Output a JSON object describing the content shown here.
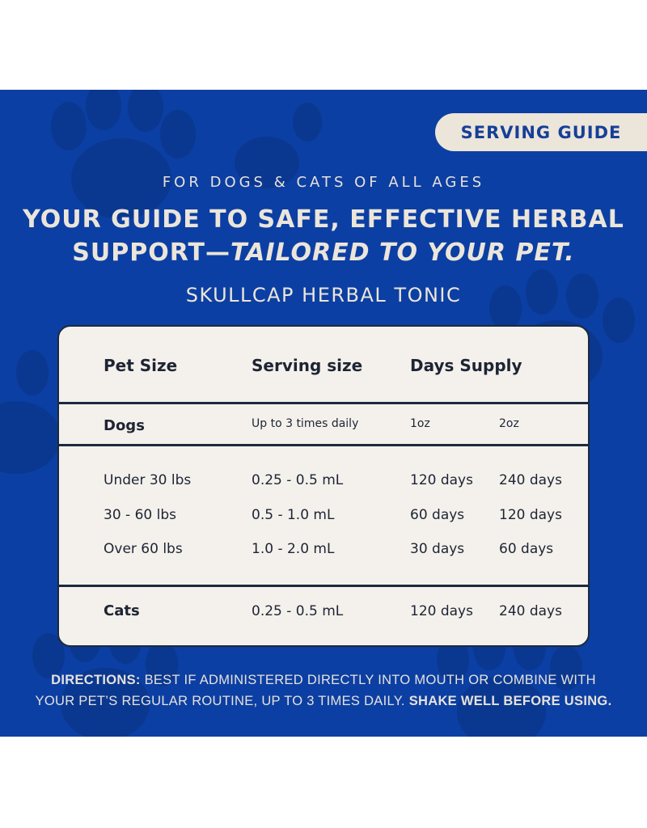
{
  "badge": "SERVING GUIDE",
  "kicker": "FOR DOGS & CATS OF ALL AGES",
  "headline": {
    "line1": "YOUR GUIDE TO SAFE, EFFECTIVE HERBAL",
    "line2_plain": "SUPPORT—",
    "line2_italic": "TAILORED TO YOUR PET."
  },
  "product_name": "SKULLCAP HERBAL TONIC",
  "table": {
    "headers": {
      "pet_size": "Pet Size",
      "serving_size": "Serving size",
      "days_supply": "Days Supply"
    },
    "dogs": {
      "label": "Dogs",
      "frequency": "Up to 3 times daily",
      "col_1oz": "1oz",
      "col_2oz": "2oz"
    },
    "dog_rows": [
      {
        "size": "Under 30 lbs",
        "serving": "0.25 - 0.5 mL",
        "days_1oz": "120 days",
        "days_2oz": "240 days"
      },
      {
        "size": "30 - 60 lbs",
        "serving": "0.5 - 1.0 mL",
        "days_1oz": "60 days",
        "days_2oz": "120 days"
      },
      {
        "size": "Over 60 lbs",
        "serving": "1.0 - 2.0 mL",
        "days_1oz": "30 days",
        "days_2oz": "60 days"
      }
    ],
    "cats": {
      "label": "Cats",
      "serving": "0.25 - 0.5 mL",
      "days_1oz": "120 days",
      "days_2oz": "240 days"
    }
  },
  "directions": {
    "label": "DIRECTIONS:",
    "text1": " BEST IF ADMINISTERED DIRECTLY INTO MOUTH OR COMBINE WITH",
    "text2": "YOUR PET’S REGULAR ROUTINE, UP TO 3 TIMES DAILY. ",
    "emphasis": "SHAKE WELL BEFORE USING."
  },
  "colors": {
    "panel": "#0c3fa3",
    "paw": "#0a3890",
    "cream": "#ece5da",
    "ink": "#1d2433"
  }
}
